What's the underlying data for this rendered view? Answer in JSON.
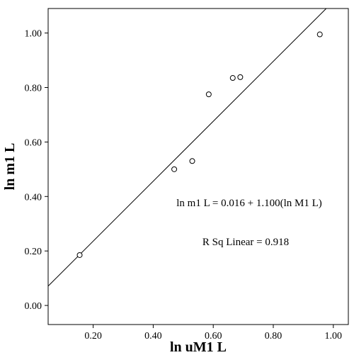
{
  "chart_data": {
    "type": "scatter",
    "xlabel": "ln uM1 L",
    "ylabel": "ln m1 L",
    "xlim": [
      0.05,
      1.05
    ],
    "ylim": [
      -0.07,
      1.09
    ],
    "x_ticks": [
      "0.20",
      "0.40",
      "0.60",
      "0.80",
      "1.00"
    ],
    "y_ticks": [
      "0.00",
      "0.20",
      "0.40",
      "0.60",
      "0.80",
      "1.00"
    ],
    "points": [
      {
        "x": 0.155,
        "y": 0.185
      },
      {
        "x": 0.47,
        "y": 0.5
      },
      {
        "x": 0.53,
        "y": 0.53
      },
      {
        "x": 0.585,
        "y": 0.775
      },
      {
        "x": 0.665,
        "y": 0.835
      },
      {
        "x": 0.69,
        "y": 0.838
      },
      {
        "x": 0.955,
        "y": 0.995
      }
    ],
    "fit_line": {
      "intercept": 0.016,
      "slope": 1.1
    },
    "grid": false,
    "annotations": {
      "equation": "ln m1 L = 0.016 + 1.100(ln M1 L)",
      "r_squared": "R Sq Linear = 0.918"
    }
  }
}
